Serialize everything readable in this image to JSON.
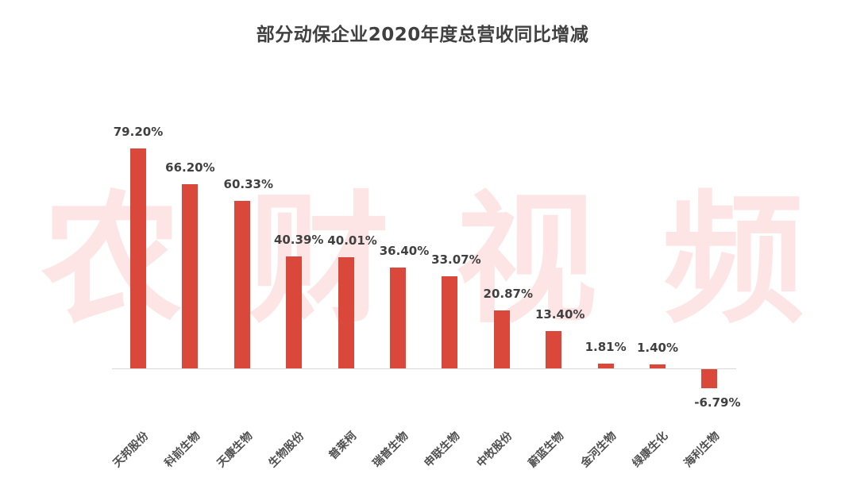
{
  "title": "部分动保企业2020年度总营收同比增减",
  "watermark": [
    "农",
    "财",
    "视",
    "频"
  ],
  "colors": {
    "bar": "#d9483b",
    "text": "#404040",
    "axis": "#d9d9d9",
    "watermark": "#fde5e6"
  },
  "chart_data": {
    "type": "bar",
    "title": "部分动保企业2020年度总营收同比增减",
    "xlabel": "",
    "ylabel": "",
    "categories": [
      "天邦股份",
      "科前生物",
      "天康生物",
      "生物股份",
      "普莱柯",
      "瑞普生物",
      "申联生物",
      "中牧股份",
      "蔚蓝生物",
      "金河生物",
      "绿康生化",
      "海利生物"
    ],
    "values": [
      79.2,
      66.2,
      60.33,
      40.39,
      40.01,
      36.4,
      33.07,
      20.87,
      13.4,
      1.81,
      1.4,
      -6.79
    ],
    "value_labels": [
      "79.20%",
      "66.20%",
      "60.33%",
      "40.39%",
      "40.01%",
      "36.40%",
      "33.07%",
      "20.87%",
      "13.40%",
      "1.81%",
      "1.40%",
      "-6.79%"
    ],
    "unit": "%",
    "grid": false,
    "legend": null,
    "ylim": [
      -10,
      80
    ]
  }
}
